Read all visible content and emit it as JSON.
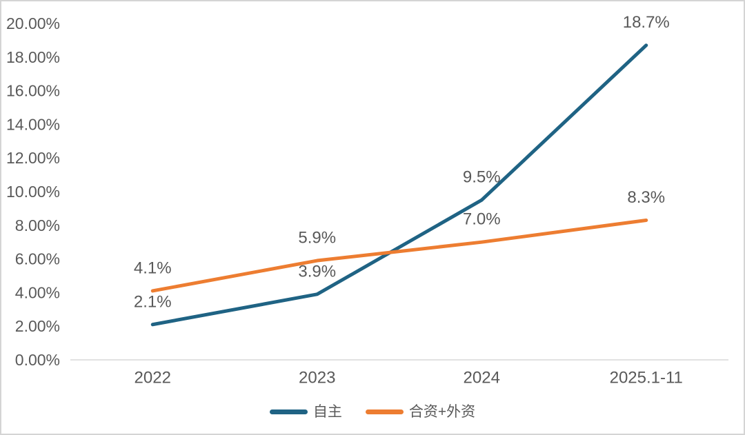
{
  "chart_data": {
    "type": "line",
    "title": "",
    "xlabel": "",
    "ylabel": "",
    "categories": [
      "2022",
      "2023",
      "2024",
      "2025.1-11"
    ],
    "series": [
      {
        "name": "自主",
        "color": "#1F6384",
        "values": [
          2.1,
          3.9,
          9.5,
          18.7
        ],
        "labels": [
          "2.1%",
          "3.9%",
          "9.5%",
          "18.7%"
        ]
      },
      {
        "name": "合资+外资",
        "color": "#ED7D31",
        "values": [
          4.1,
          5.9,
          7.0,
          8.3
        ],
        "labels": [
          "4.1%",
          "5.9%",
          "7.0%",
          "8.3%"
        ]
      }
    ],
    "ylim": [
      0,
      20
    ],
    "y_tick_step": 2,
    "y_tick_labels": [
      "0.00%",
      "2.00%",
      "4.00%",
      "6.00%",
      "8.00%",
      "10.00%",
      "12.00%",
      "14.00%",
      "16.00%",
      "18.00%",
      "20.00%"
    ],
    "grid": false,
    "legend_position": "bottom"
  },
  "style": {
    "text_color": "#595959",
    "axis_line_color": "#D9D9D9",
    "background": "#FFFFFF",
    "border_color": "#D4D4D4"
  }
}
